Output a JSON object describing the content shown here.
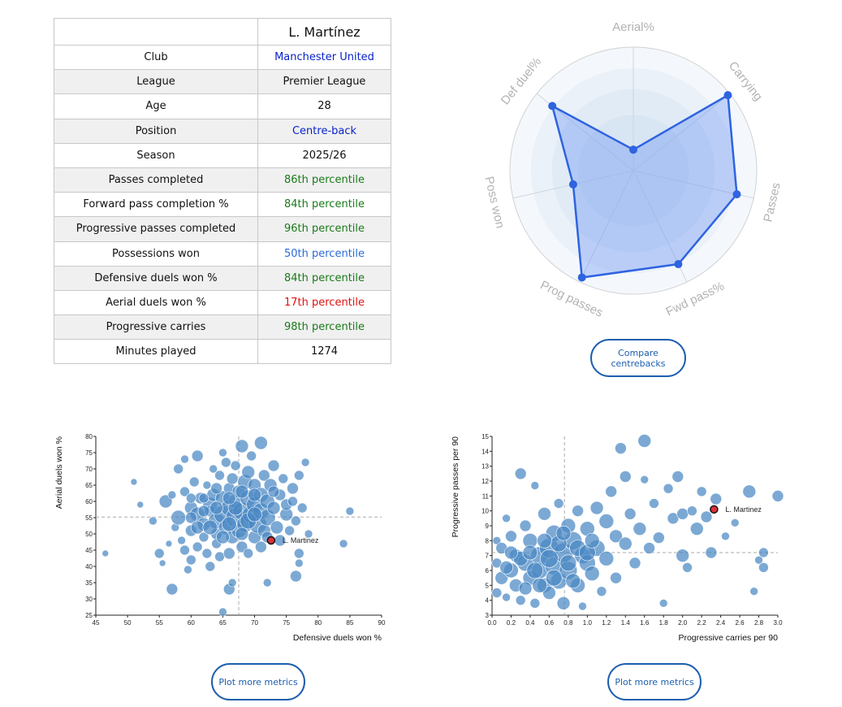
{
  "player_name": "L. Martínez",
  "profile": [
    {
      "label": "Club",
      "value": "Manchester United",
      "color": "#0a23c8"
    },
    {
      "label": "League",
      "value": "Premier League",
      "color": "#111111"
    },
    {
      "label": "Age",
      "value": "28",
      "color": "#111111"
    },
    {
      "label": "Position",
      "value": "Centre-back",
      "color": "#0a23c8"
    },
    {
      "label": "Season",
      "value": "2025/26",
      "color": "#111111"
    },
    {
      "label": "Passes completed",
      "value": "86th percentile",
      "color": "#1a7a1a"
    },
    {
      "label": "Forward pass completion %",
      "value": "84th percentile",
      "color": "#1a7a1a"
    },
    {
      "label": "Progressive passes completed",
      "value": "96th percentile",
      "color": "#1a7a1a"
    },
    {
      "label": "Possessions won",
      "value": "50th percentile",
      "color": "#2a6bd8"
    },
    {
      "label": "Defensive duels won %",
      "value": "84th percentile",
      "color": "#1a7a1a"
    },
    {
      "label": "Aerial duels won %",
      "value": "17th percentile",
      "color": "#e01010"
    },
    {
      "label": "Progressive carries",
      "value": "98th percentile",
      "color": "#1a7a1a"
    },
    {
      "label": "Minutes played",
      "value": "1274",
      "color": "#111111"
    }
  ],
  "radar": {
    "axes": [
      "Aerial%",
      "Carrying",
      "Passes",
      "Fwd pass%",
      "Prog passes",
      "Poss won",
      "Def duel%"
    ],
    "values": [
      0.17,
      0.98,
      0.86,
      0.84,
      0.96,
      0.5,
      0.84
    ]
  },
  "compare_button": "Compare centrebacks",
  "plot_more_label": "Plot more metrics",
  "colors": {
    "accent": "#1d5fae",
    "bubble": "#4a88c4",
    "highlight": "#d9303a",
    "radar_line": "#2f63e0"
  },
  "chart_data": [
    {
      "type": "scatter",
      "title": "",
      "xlabel": "Defensive duels won %",
      "ylabel": "Aerial duels won %",
      "xlim": [
        45,
        90
      ],
      "ylim": [
        25,
        80
      ],
      "xticks": [
        45,
        50,
        55,
        60,
        65,
        70,
        75,
        80,
        85,
        90
      ],
      "yticks": [
        25,
        30,
        35,
        40,
        45,
        50,
        55,
        60,
        65,
        70,
        75,
        80
      ],
      "ref_lines": {
        "x": 67.5,
        "y": 55.2
      },
      "highlight": {
        "name": "L. Martinez",
        "x": 72.6,
        "y": 48.0
      },
      "points": [
        [
          46.5,
          44,
          4
        ],
        [
          51,
          66,
          4
        ],
        [
          52,
          59,
          4
        ],
        [
          54,
          54,
          5
        ],
        [
          55,
          44,
          6
        ],
        [
          55.5,
          41,
          4
        ],
        [
          56,
          60,
          8
        ],
        [
          56.5,
          47,
          4
        ],
        [
          57,
          62,
          5
        ],
        [
          57.5,
          52,
          5
        ],
        [
          57,
          33,
          7
        ],
        [
          58,
          70,
          6
        ],
        [
          58,
          55,
          9
        ],
        [
          58.5,
          48,
          5
        ],
        [
          59,
          73,
          5
        ],
        [
          59,
          63,
          6
        ],
        [
          59,
          45,
          6
        ],
        [
          59.5,
          39,
          5
        ],
        [
          60,
          58,
          8
        ],
        [
          60,
          51,
          7
        ],
        [
          60,
          42,
          6
        ],
        [
          60.5,
          66,
          6
        ],
        [
          61,
          74,
          7
        ],
        [
          61,
          56,
          9
        ],
        [
          61,
          46,
          6
        ],
        [
          61.5,
          61,
          7
        ],
        [
          62,
          53,
          8
        ],
        [
          62,
          49,
          6
        ],
        [
          62.5,
          65,
          5
        ],
        [
          62.5,
          44,
          6
        ],
        [
          63,
          59,
          9
        ],
        [
          63,
          57,
          7
        ],
        [
          63,
          40,
          6
        ],
        [
          63.5,
          70,
          5
        ],
        [
          63.5,
          62,
          8
        ],
        [
          64,
          54,
          10
        ],
        [
          64,
          50,
          7
        ],
        [
          64,
          47,
          6
        ],
        [
          64.5,
          68,
          6
        ],
        [
          64.5,
          43,
          6
        ],
        [
          65,
          75,
          5
        ],
        [
          65,
          61,
          9
        ],
        [
          65,
          56,
          11
        ],
        [
          65,
          26,
          5
        ],
        [
          65.5,
          72,
          6
        ],
        [
          65.5,
          52,
          9
        ],
        [
          66,
          64,
          7
        ],
        [
          66,
          58,
          10
        ],
        [
          66,
          44,
          7
        ],
        [
          66,
          33,
          7
        ],
        [
          66.5,
          67,
          7
        ],
        [
          66.5,
          49,
          8
        ],
        [
          66.5,
          35,
          5
        ],
        [
          67,
          71,
          6
        ],
        [
          67,
          55,
          12
        ],
        [
          67,
          60,
          9
        ],
        [
          67.5,
          63,
          8
        ],
        [
          67.5,
          51,
          9
        ],
        [
          68,
          77,
          8
        ],
        [
          68,
          57,
          11
        ],
        [
          68,
          46,
          7
        ],
        [
          68.5,
          66,
          9
        ],
        [
          68.5,
          53,
          10
        ],
        [
          69,
          61,
          10
        ],
        [
          69,
          69,
          8
        ],
        [
          69,
          44,
          6
        ],
        [
          69.5,
          56,
          11
        ],
        [
          69.5,
          74,
          6
        ],
        [
          70,
          59,
          10
        ],
        [
          70,
          49,
          8
        ],
        [
          70,
          65,
          8
        ],
        [
          70.5,
          53,
          11
        ],
        [
          71,
          78,
          8
        ],
        [
          71,
          62,
          9
        ],
        [
          71,
          57,
          10
        ],
        [
          71.5,
          68,
          7
        ],
        [
          71.5,
          51,
          8
        ],
        [
          72,
          60,
          9
        ],
        [
          72,
          55,
          10
        ],
        [
          72,
          35,
          5
        ],
        [
          72.5,
          65,
          8
        ],
        [
          73,
          58,
          8
        ],
        [
          73,
          71,
          7
        ],
        [
          73.5,
          52,
          8
        ],
        [
          74,
          62,
          7
        ],
        [
          74,
          48,
          7
        ],
        [
          74.5,
          67,
          6
        ],
        [
          75,
          56,
          8
        ],
        [
          75,
          59,
          7
        ],
        [
          75.5,
          51,
          6
        ],
        [
          76,
          64,
          7
        ],
        [
          76,
          60,
          6
        ],
        [
          76.5,
          54,
          6
        ],
        [
          77,
          44,
          6
        ],
        [
          77,
          68,
          6
        ],
        [
          77.5,
          58,
          6
        ],
        [
          78,
          72,
          5
        ],
        [
          78.5,
          50,
          5
        ],
        [
          76.5,
          37,
          7
        ],
        [
          77,
          41,
          5
        ],
        [
          84,
          47,
          5
        ],
        [
          85,
          57,
          5
        ],
        [
          60,
          55,
          7
        ],
        [
          61,
          52,
          8
        ],
        [
          62,
          57,
          7
        ],
        [
          63,
          52,
          9
        ],
        [
          64,
          58,
          8
        ],
        [
          65,
          49,
          8
        ],
        [
          66,
          53,
          9
        ],
        [
          67,
          58,
          9
        ],
        [
          68,
          50,
          8
        ],
        [
          69,
          54,
          10
        ],
        [
          70,
          56,
          9
        ],
        [
          71,
          46,
          7
        ],
        [
          68,
          63,
          8
        ],
        [
          66,
          61,
          8
        ],
        [
          64,
          64,
          7
        ],
        [
          70,
          62,
          8
        ],
        [
          72,
          49,
          7
        ],
        [
          73,
          63,
          7
        ],
        [
          62,
          61,
          6
        ],
        [
          60,
          61,
          6
        ]
      ]
    },
    {
      "type": "scatter",
      "title": "",
      "xlabel": "Progressive carries per 90",
      "ylabel": "Progressive passes per 90",
      "xlim": [
        0.0,
        3.0
      ],
      "ylim": [
        3,
        15
      ],
      "xticks": [
        "0.0",
        "0.2",
        "0.4",
        "0.6",
        "0.8",
        "1.0",
        "1.2",
        "1.4",
        "1.6",
        "1.8",
        "2.0",
        "2.2",
        "2.4",
        "2.6",
        "2.8",
        "3.0"
      ],
      "yticks": [
        3,
        4,
        5,
        6,
        7,
        8,
        9,
        10,
        11,
        12,
        13,
        14,
        15
      ],
      "ref_lines": {
        "x": 0.76,
        "y": 7.2
      },
      "highlight": {
        "name": "L. Martinez",
        "x": 2.33,
        "y": 10.1
      },
      "points": [
        [
          0.05,
          4.5,
          6
        ],
        [
          0.05,
          6.5,
          6
        ],
        [
          0.05,
          8.0,
          5
        ],
        [
          0.1,
          5.5,
          8
        ],
        [
          0.1,
          7.5,
          7
        ],
        [
          0.15,
          4.2,
          5
        ],
        [
          0.15,
          9.5,
          5
        ],
        [
          0.2,
          6.0,
          9
        ],
        [
          0.2,
          8.3,
          7
        ],
        [
          0.25,
          5.0,
          8
        ],
        [
          0.25,
          7.0,
          8
        ],
        [
          0.3,
          12.5,
          7
        ],
        [
          0.3,
          4.0,
          6
        ],
        [
          0.35,
          6.5,
          10
        ],
        [
          0.35,
          9.0,
          7
        ],
        [
          0.4,
          5.5,
          9
        ],
        [
          0.4,
          8.0,
          9
        ],
        [
          0.45,
          11.7,
          5
        ],
        [
          0.45,
          3.8,
          6
        ],
        [
          0.5,
          7.0,
          11
        ],
        [
          0.5,
          6.0,
          10
        ],
        [
          0.55,
          9.8,
          8
        ],
        [
          0.55,
          5.0,
          9
        ],
        [
          0.6,
          7.5,
          12
        ],
        [
          0.6,
          4.5,
          8
        ],
        [
          0.65,
          8.5,
          10
        ],
        [
          0.65,
          6.3,
          11
        ],
        [
          0.7,
          5.3,
          10
        ],
        [
          0.7,
          10.5,
          6
        ],
        [
          0.75,
          7.2,
          12
        ],
        [
          0.75,
          3.8,
          8
        ],
        [
          0.8,
          9.0,
          9
        ],
        [
          0.8,
          6.0,
          11
        ],
        [
          0.85,
          8.0,
          11
        ],
        [
          0.9,
          5.0,
          9
        ],
        [
          0.9,
          10.0,
          7
        ],
        [
          0.95,
          7.0,
          10
        ],
        [
          0.95,
          3.6,
          5
        ],
        [
          1.0,
          8.8,
          9
        ],
        [
          1.0,
          6.5,
          10
        ],
        [
          1.05,
          5.8,
          9
        ],
        [
          1.1,
          10.2,
          8
        ],
        [
          1.1,
          7.5,
          10
        ],
        [
          1.15,
          4.6,
          6
        ],
        [
          1.2,
          9.3,
          9
        ],
        [
          1.2,
          6.8,
          9
        ],
        [
          1.25,
          11.3,
          7
        ],
        [
          1.3,
          8.3,
          8
        ],
        [
          1.3,
          5.5,
          7
        ],
        [
          1.35,
          14.2,
          7
        ],
        [
          1.4,
          7.8,
          8
        ],
        [
          1.4,
          12.3,
          7
        ],
        [
          1.45,
          9.8,
          7
        ],
        [
          1.5,
          6.5,
          7
        ],
        [
          1.55,
          8.8,
          8
        ],
        [
          1.6,
          12.1,
          5
        ],
        [
          1.6,
          14.7,
          8
        ],
        [
          1.65,
          7.5,
          7
        ],
        [
          1.7,
          10.5,
          6
        ],
        [
          1.75,
          8.2,
          7
        ],
        [
          1.8,
          3.8,
          5
        ],
        [
          1.85,
          11.5,
          6
        ],
        [
          1.9,
          9.5,
          7
        ],
        [
          1.95,
          12.3,
          7
        ],
        [
          2.0,
          7.0,
          8
        ],
        [
          2.0,
          9.8,
          7
        ],
        [
          2.05,
          6.2,
          6
        ],
        [
          2.1,
          10.0,
          6
        ],
        [
          2.15,
          8.8,
          8
        ],
        [
          2.2,
          11.3,
          6
        ],
        [
          2.25,
          9.6,
          7
        ],
        [
          2.3,
          7.2,
          7
        ],
        [
          2.35,
          10.8,
          7
        ],
        [
          2.45,
          8.3,
          5
        ],
        [
          2.55,
          9.2,
          5
        ],
        [
          2.7,
          11.3,
          8
        ],
        [
          2.75,
          4.6,
          5
        ],
        [
          2.8,
          6.7,
          5
        ],
        [
          2.85,
          7.2,
          6
        ],
        [
          2.85,
          6.2,
          6
        ],
        [
          3.0,
          11.0,
          7
        ],
        [
          0.3,
          6.8,
          9
        ],
        [
          0.4,
          7.2,
          9
        ],
        [
          0.5,
          5.0,
          9
        ],
        [
          0.6,
          6.8,
          11
        ],
        [
          0.7,
          7.8,
          10
        ],
        [
          0.8,
          6.5,
          10
        ],
        [
          0.9,
          7.5,
          10
        ],
        [
          1.0,
          7.2,
          10
        ],
        [
          0.2,
          7.2,
          8
        ],
        [
          0.45,
          6.0,
          10
        ],
        [
          0.55,
          8.0,
          9
        ],
        [
          0.65,
          5.5,
          10
        ],
        [
          0.75,
          8.5,
          9
        ],
        [
          0.35,
          4.8,
          8
        ],
        [
          0.15,
          6.2,
          8
        ],
        [
          1.05,
          8.0,
          9
        ],
        [
          0.85,
          5.3,
          9
        ]
      ]
    }
  ]
}
